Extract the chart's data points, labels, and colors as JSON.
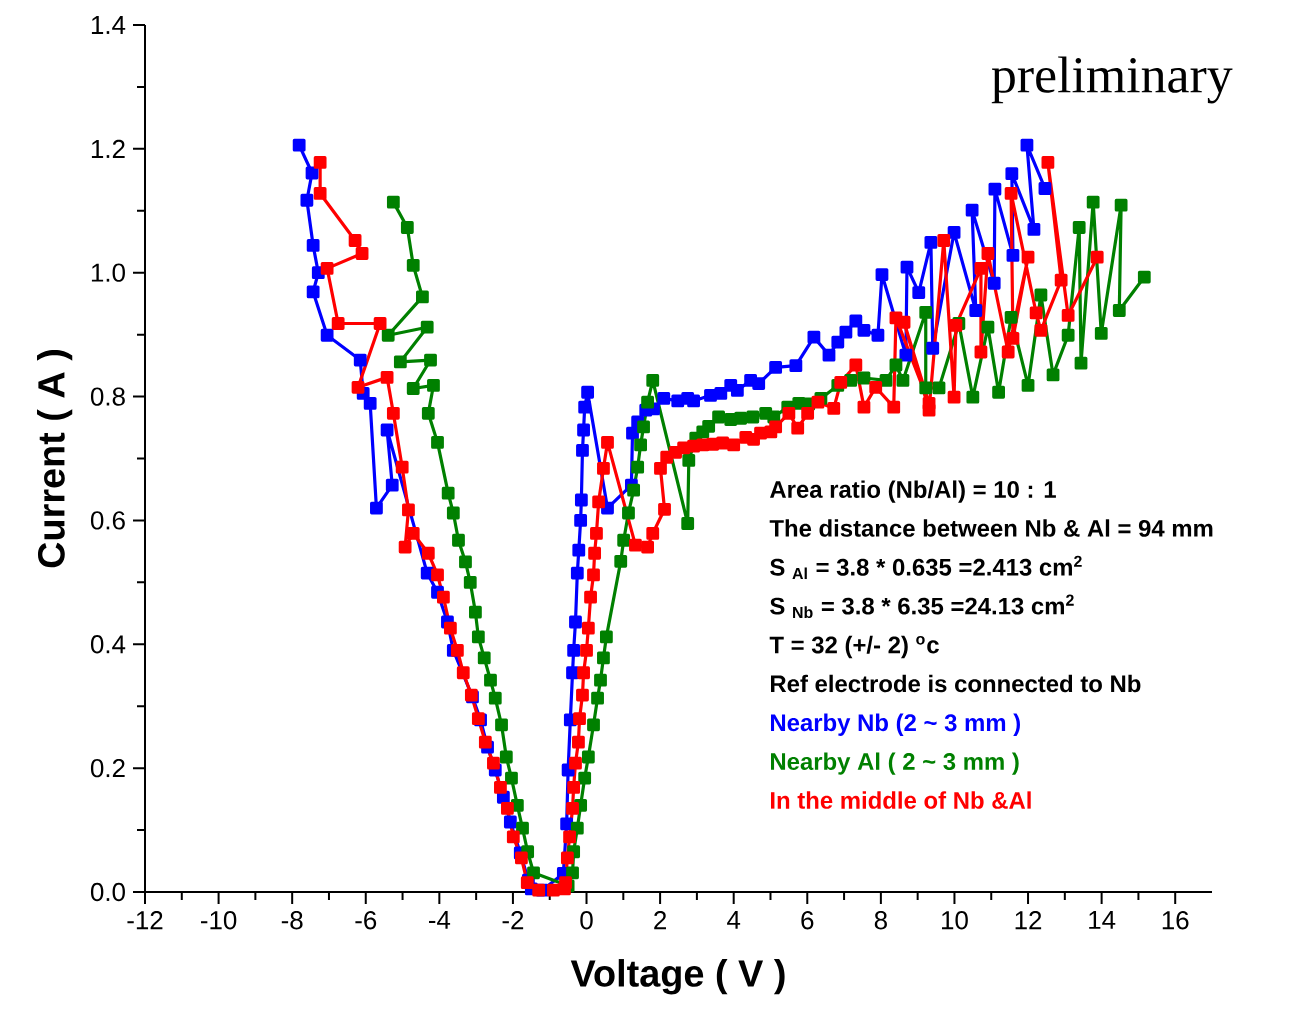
{
  "chart_data": {
    "type": "line",
    "xlabel": "Voltage ( V )",
    "ylabel": "Current ( A )",
    "xlim": [
      -12,
      17
    ],
    "ylim": [
      0,
      1.4
    ],
    "xticks": [
      -12,
      -10,
      -8,
      -6,
      -4,
      -2,
      0,
      2,
      4,
      6,
      8,
      10,
      12,
      14,
      16
    ],
    "yticks": [
      {
        "value": 0,
        "label": "0.0"
      },
      0.2,
      0.4,
      0.6,
      0.8,
      {
        "value": 1,
        "label": "1.0"
      },
      1.2,
      1.4
    ],
    "marker": "square",
    "line_style": "solid",
    "annotations": [
      "preliminary",
      "Area ratio (Nb/Al) = 10 : 1",
      "The distance between Nb & Al = 94 mm",
      "S $_{Al}$ = 3.8 * 0.635 =2.413  cm$^{2}$",
      "S $_{Nb}$ = 3.8 * 6.35 =24.13  cm$^{2}$",
      "T = 32 (+/- 2) $^{o}$c",
      "Ref electrode is connected to Nb"
    ],
    "series": [
      {
        "name": "Nearby Nb (2 ~ 3 mm )",
        "color": "#0000ff",
        "x": [
          -7.81,
          -7.46,
          -7.6,
          -7.43,
          -7.29,
          -7.43,
          -7.05,
          -6.15,
          -6.07,
          -5.88,
          -5.71,
          -5.28,
          -5.42,
          -4.33,
          -4.05,
          -3.78,
          -3.62,
          -3.35,
          -3.1,
          -2.88,
          -2.69,
          -2.48,
          -2.26,
          -2.07,
          -1.8,
          -1.58,
          -1.5,
          -1.2,
          -0.9,
          -0.63,
          -0.54,
          -0.5,
          -0.44,
          -0.38,
          -0.35,
          -0.3,
          -0.25,
          -0.21,
          -0.16,
          -0.14,
          -0.11,
          -0.08,
          -0.05,
          0.03,
          0.57,
          1.22,
          1.25,
          1.39,
          1.61,
          1.82,
          2.1,
          2.48,
          2.75,
          2.91,
          3.37,
          3.65,
          3.92,
          4.1,
          4.46,
          4.68,
          5.14,
          5.69,
          6.18,
          6.59,
          6.83,
          7.05,
          7.32,
          7.54,
          7.92,
          8.03,
          8.68,
          8.71,
          9.03,
          9.36,
          9.41,
          9.99,
          10.58,
          10.48,
          11.08,
          11.1,
          11.59,
          11.56,
          12.16,
          11.97,
          12.46
        ],
        "values": [
          1.206,
          1.161,
          1.117,
          1.044,
          1.0,
          0.969,
          0.899,
          0.859,
          0.805,
          0.789,
          0.62,
          0.657,
          0.746,
          0.515,
          0.484,
          0.436,
          0.39,
          null,
          0.315,
          0.278,
          0.234,
          0.197,
          0.153,
          0.113,
          0.063,
          0.019,
          0.005,
          0.003,
          null,
          0.03,
          0.11,
          0.197,
          0.278,
          0.354,
          0.39,
          0.436,
          0.515,
          0.552,
          0.6,
          0.633,
          0.713,
          0.746,
          0.783,
          0.807,
          0.62,
          0.657,
          0.741,
          0.759,
          0.778,
          0.78,
          0.797,
          0.793,
          0.797,
          0.793,
          0.802,
          0.805,
          0.818,
          0.81,
          0.826,
          0.821,
          0.847,
          0.85,
          0.896,
          0.867,
          0.888,
          0.904,
          0.922,
          0.907,
          0.899,
          0.997,
          0.867,
          1.009,
          0.968,
          1.049,
          0.878,
          1.065,
          0.939,
          1.101,
          0.983,
          1.135,
          1.028,
          1.16,
          1.07,
          1.206,
          1.136
        ]
      },
      {
        "name": "Nearby Al ( 2 ~ 3 mm )",
        "color": "#008000",
        "x": [
          -5.25,
          -4.87,
          -4.71,
          -4.46,
          -5.39,
          -4.33,
          -5.06,
          -4.24,
          -4.71,
          -4.16,
          -4.3,
          -4.05,
          -3.76,
          -3.62,
          -3.48,
          -3.29,
          -3.16,
          -3.02,
          -2.94,
          -2.78,
          -2.61,
          -2.48,
          -2.31,
          -2.18,
          -2.04,
          -1.88,
          -1.74,
          -1.6,
          -1.44,
          -1.3,
          -0.8,
          -0.5,
          -0.38,
          -0.35,
          -0.25,
          -0.16,
          -0.05,
          0.05,
          0.19,
          0.3,
          0.38,
          0.46,
          0.54,
          0.93,
          1.01,
          1.14,
          1.28,
          1.39,
          1.47,
          1.55,
          1.66,
          1.8,
          2.75,
          2.78,
          2.97,
          3.16,
          3.32,
          3.59,
          3.92,
          4.19,
          4.52,
          4.87,
          5.09,
          5.47,
          5.77,
          6.04,
          6.37,
          6.83,
          7.18,
          7.54,
          8.14,
          8.41,
          8.6,
          9.22,
          9.22,
          9.58,
          10.12,
          10.5,
          10.91,
          11.2,
          11.54,
          12.0,
          12.35,
          12.68,
          13.09,
          13.39,
          13.44,
          13.77,
          13.99,
          14.53,
          14.48,
          15.16
        ],
        "values": [
          1.114,
          1.073,
          1.012,
          0.961,
          0.899,
          0.912,
          0.856,
          0.859,
          0.813,
          0.818,
          0.773,
          0.726,
          0.644,
          0.612,
          0.568,
          0.533,
          0.5,
          0.452,
          0.412,
          0.378,
          0.342,
          0.313,
          0.27,
          0.218,
          0.184,
          0.14,
          0.103,
          0.065,
          0.031,
          null,
          null,
          0.01,
          0.031,
          0.065,
          0.103,
          0.14,
          0.184,
          0.218,
          0.27,
          0.313,
          0.342,
          0.378,
          0.412,
          0.534,
          0.568,
          0.612,
          0.649,
          0.686,
          0.722,
          0.751,
          0.791,
          0.826,
          0.595,
          0.697,
          0.733,
          0.743,
          0.752,
          0.767,
          0.763,
          0.765,
          0.767,
          0.773,
          0.767,
          0.783,
          0.789,
          0.788,
          0.797,
          0.818,
          0.826,
          0.83,
          0.826,
          0.851,
          0.826,
          0.936,
          0.814,
          0.814,
          0.918,
          0.799,
          0.912,
          0.807,
          0.928,
          0.818,
          0.964,
          0.835,
          0.899,
          1.073,
          0.854,
          1.114,
          0.902,
          1.109,
          0.939,
          0.993
        ]
      },
      {
        "name": "In the middle of Nb &Al",
        "color": "#ff0000",
        "x": [
          -7.24,
          -7.24,
          -6.29,
          -6.1,
          -7.05,
          -6.75,
          -5.61,
          -6.21,
          -5.42,
          -5.25,
          -5.01,
          -4.84,
          -4.93,
          -4.71,
          -4.3,
          -4.05,
          -3.89,
          -3.7,
          -3.51,
          -3.35,
          -3.13,
          -2.94,
          -2.75,
          -2.53,
          -2.34,
          -2.15,
          -1.99,
          -1.77,
          -1.61,
          -1.3,
          -0.9,
          -0.6,
          -0.57,
          -0.52,
          -0.46,
          -0.38,
          -0.35,
          -0.3,
          -0.22,
          -0.19,
          -0.11,
          -0.08,
          0,
          0.05,
          0.11,
          0.19,
          0.22,
          0.27,
          0.33,
          0.46,
          0.57,
          1.33,
          1.66,
          1.8,
          2.12,
          2.01,
          2.18,
          2.42,
          2.64,
          2.91,
          3.16,
          3.43,
          3.7,
          4.0,
          4.33,
          4.54,
          4.73,
          5.01,
          5.14,
          5.5,
          5.74,
          6.01,
          6.29,
          6.72,
          6.91,
          7.32,
          7.54,
          7.86,
          8.35,
          8.41,
          9.31,
          8.63,
          9.31,
          9.71,
          9.99,
          10.04,
          10.72,
          10.72,
          10.91,
          11.46,
          12.0,
          11.59,
          11.54,
          12.22,
          12.35,
          12.9,
          12.54,
          13.09,
          13.88
        ],
        "values": [
          1.178,
          1.128,
          1.052,
          1.031,
          1.007,
          0.918,
          0.918,
          0.815,
          0.831,
          0.773,
          0.686,
          0.617,
          0.557,
          0.579,
          0.547,
          0.512,
          0.476,
          0.426,
          0.39,
          0.354,
          0.318,
          0.28,
          0.242,
          0.208,
          0.169,
          0.135,
          0.089,
          0.055,
          0.015,
          0.003,
          0.003,
          0.005,
          0.015,
          0.055,
          0.089,
          0.135,
          0.169,
          0.208,
          0.242,
          0.28,
          0.318,
          0.354,
          0.39,
          0.426,
          0.476,
          0.512,
          0.547,
          0.579,
          0.63,
          0.684,
          0.726,
          0.56,
          0.557,
          0.579,
          0.618,
          0.684,
          0.702,
          0.71,
          0.717,
          0.72,
          0.722,
          0.723,
          0.725,
          0.722,
          0.734,
          0.731,
          0.741,
          0.743,
          0.751,
          0.773,
          0.749,
          0.773,
          0.791,
          0.781,
          0.823,
          0.851,
          0.783,
          0.815,
          0.783,
          0.927,
          0.789,
          0.92,
          0.778,
          1.052,
          0.799,
          0.915,
          1.007,
          0.872,
          1.031,
          0.872,
          1.025,
          0.894,
          1.128,
          0.935,
          0.907,
          0.988,
          1.178,
          0.931,
          1.025
        ]
      }
    ]
  }
}
